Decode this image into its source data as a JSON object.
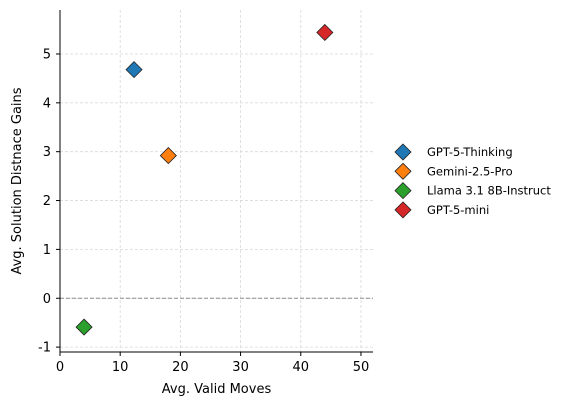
{
  "chart_data": {
    "type": "scatter",
    "title": "",
    "xlabel": "Avg. Valid Moves",
    "ylabel": "Avg. Solution Distnace Gains",
    "xlim": [
      0,
      52
    ],
    "ylim": [
      -1.1,
      5.9
    ],
    "xticks": [
      0,
      10,
      20,
      30,
      40,
      50
    ],
    "yticks": [
      -1,
      0,
      1,
      2,
      3,
      4,
      5
    ],
    "grid": true,
    "reference_line_y": 0,
    "legend_position": "right",
    "series": [
      {
        "name": "GPT-5-Thinking",
        "x": 12.3,
        "y": 4.68,
        "color": "#1f77b4",
        "marker": "diamond"
      },
      {
        "name": "Gemini-2.5-Pro",
        "x": 18.0,
        "y": 2.92,
        "color": "#ff7f0e",
        "marker": "diamond"
      },
      {
        "name": "Llama 3.1 8B-Instruct",
        "x": 4.0,
        "y": -0.59,
        "color": "#2ca02c",
        "marker": "diamond"
      },
      {
        "name": "GPT-5-mini",
        "x": 44.0,
        "y": 5.44,
        "color": "#d62728",
        "marker": "diamond"
      }
    ]
  }
}
